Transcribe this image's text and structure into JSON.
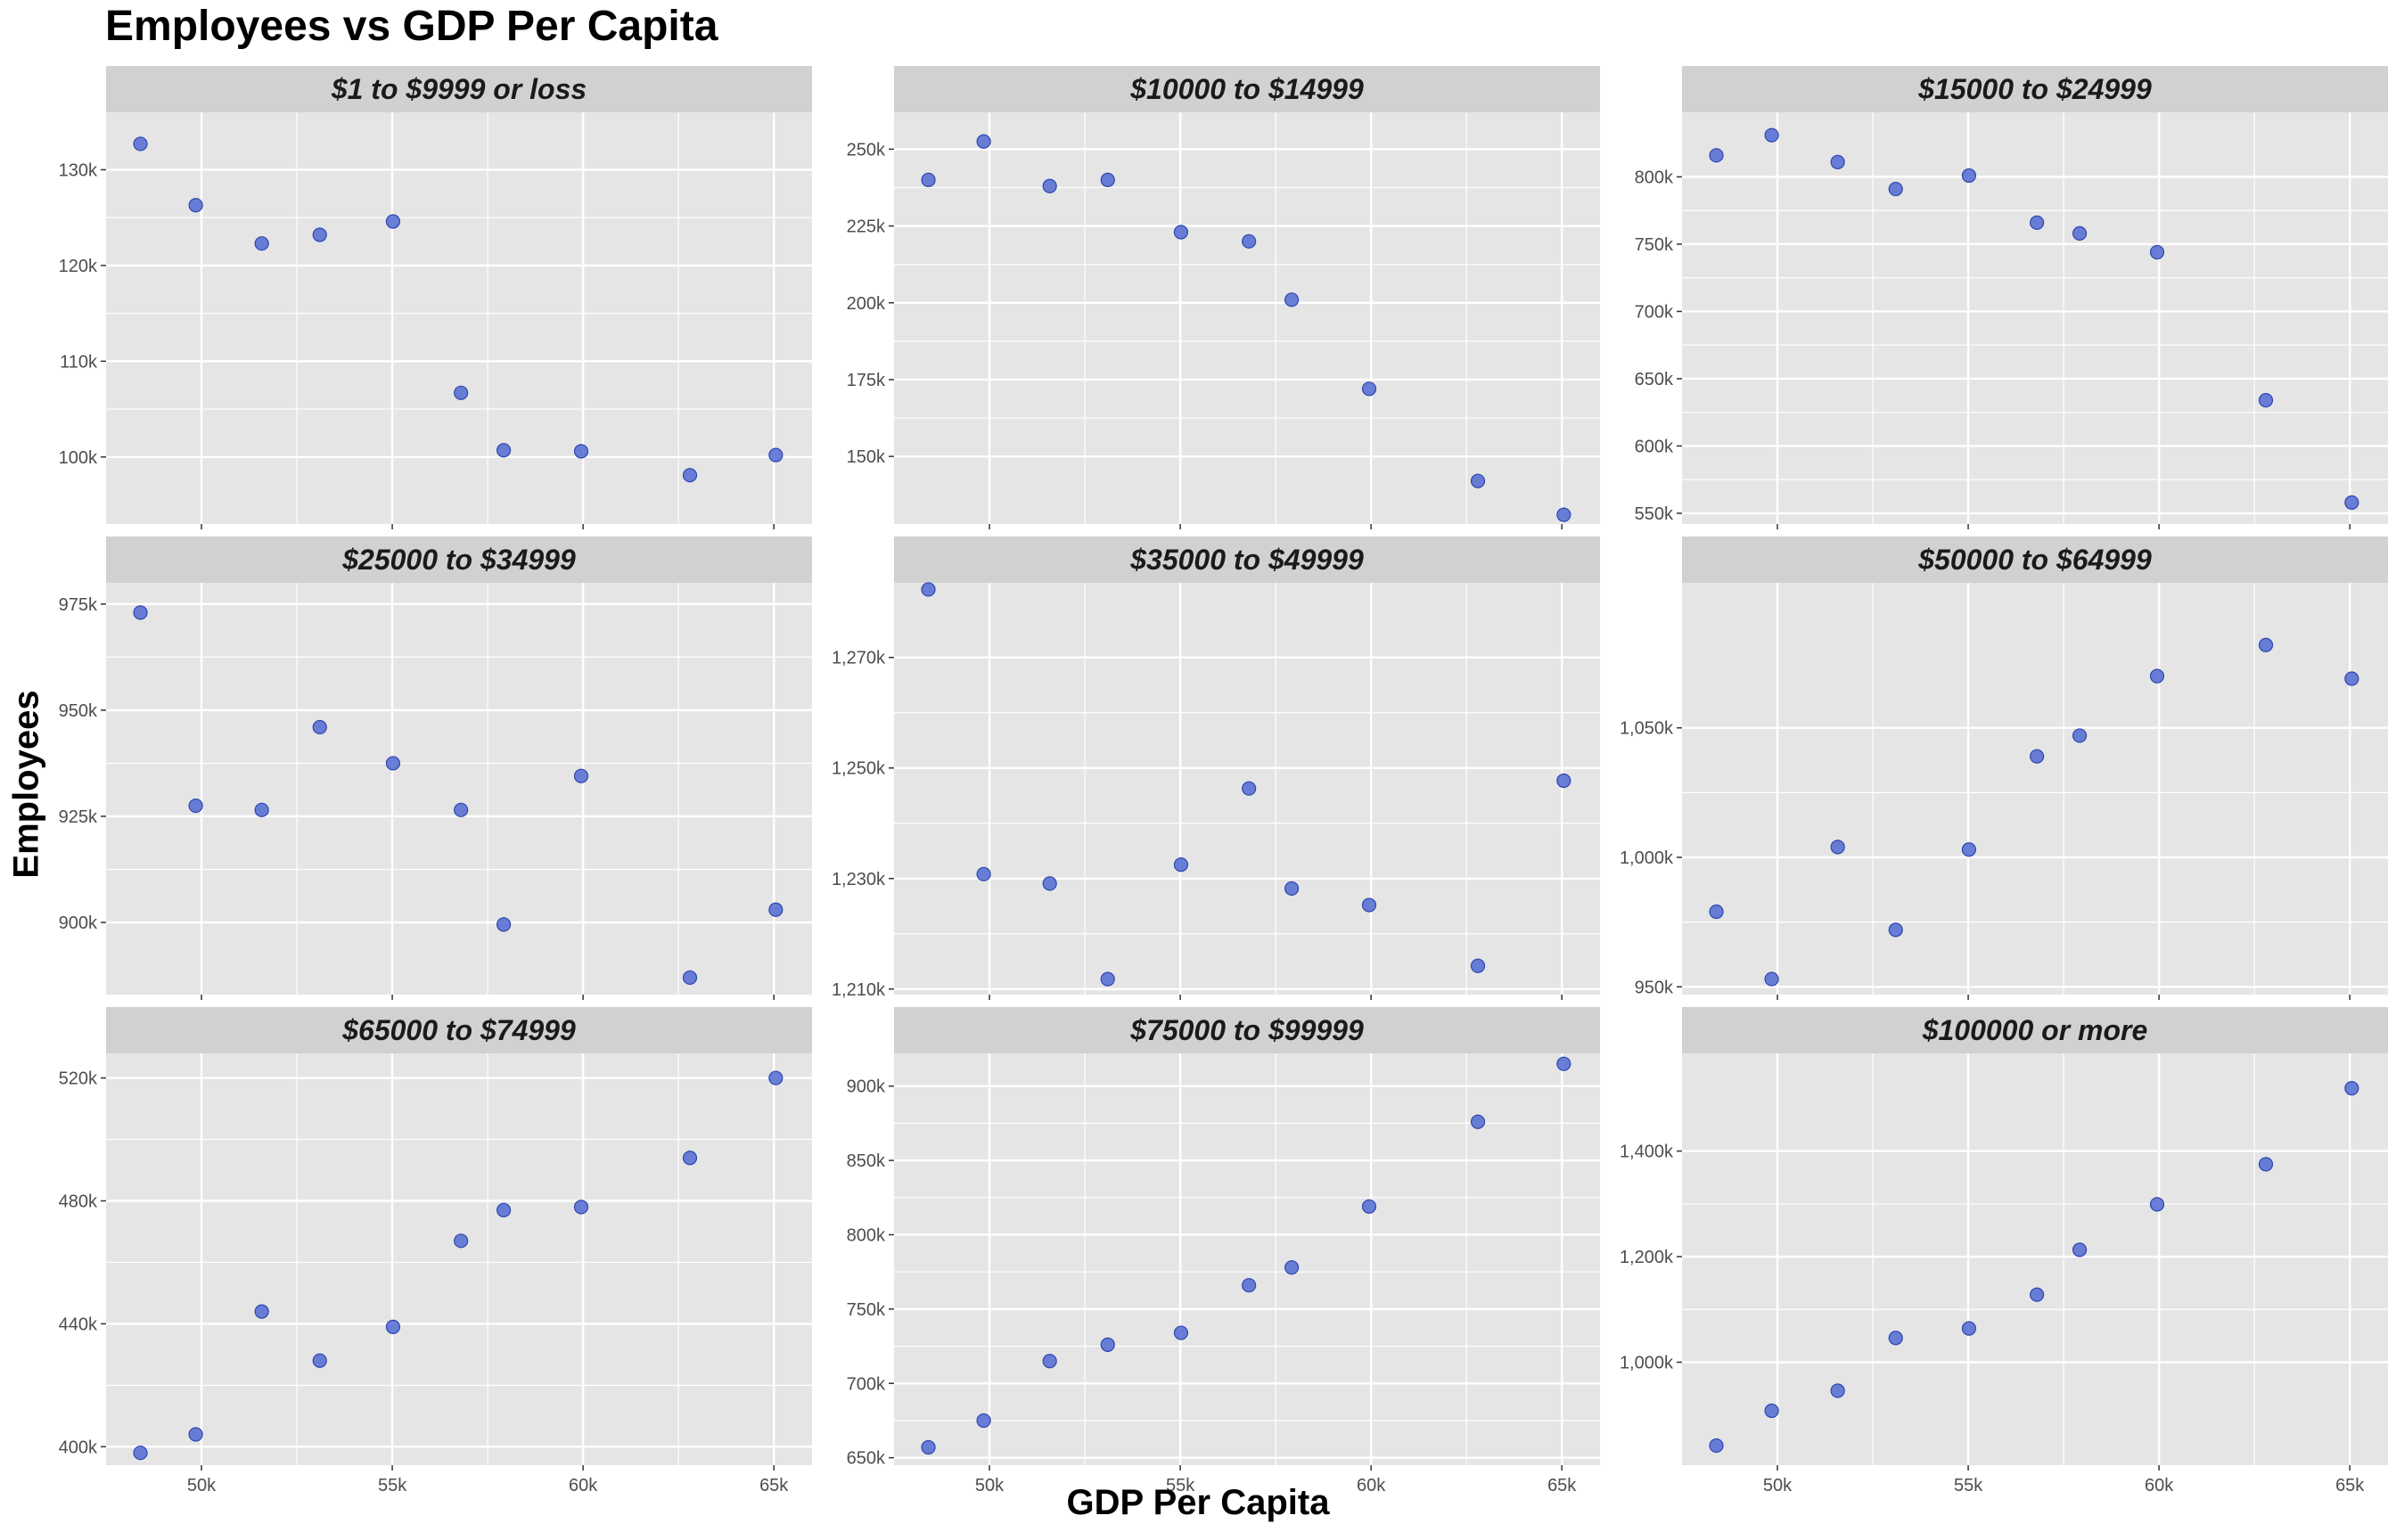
{
  "title": "Employees vs GDP Per Capita",
  "xlabel": "GDP Per Capita",
  "ylabel": "Employees",
  "colors": {
    "panel_bg": "#E5E5E5",
    "strip_bg": "#D1D1D1",
    "grid": "#FFFFFF",
    "point_fill": "#4A64D0",
    "point_stroke": "#2E46B0"
  },
  "chart_data": {
    "type": "scatter",
    "layout": "faceted 3x3 grid, free y scales, shared x axis",
    "grid": true,
    "legend": "none",
    "xlabel": "GDP Per Capita",
    "ylabel": "Employees",
    "xlim": [
      47500,
      66000
    ],
    "x_ticks": [
      50000,
      55000,
      60000,
      65000
    ],
    "x_tick_labels": [
      "50k",
      "55k",
      "60k",
      "65k"
    ],
    "x": [
      48400,
      49850,
      51580,
      53100,
      55020,
      56800,
      57920,
      59950,
      62800,
      65050
    ],
    "facets": [
      {
        "label": "$1 to $9999 or loss",
        "ylim": [
          93000,
          136000
        ],
        "y_ticks": [
          100000,
          110000,
          120000,
          130000
        ],
        "y_tick_labels": [
          "100k",
          "110k",
          "120k",
          "130k"
        ],
        "values": [
          132700,
          126300,
          122300,
          123200,
          124600,
          106700,
          100700,
          100600,
          98100,
          100200
        ]
      },
      {
        "label": "$10000 to $14999",
        "ylim": [
          128000,
          262000
        ],
        "y_ticks": [
          150000,
          175000,
          200000,
          225000,
          250000
        ],
        "y_tick_labels": [
          "150k",
          "175k",
          "200k",
          "225k",
          "250k"
        ],
        "values": [
          240000,
          252500,
          238000,
          240000,
          223000,
          220000,
          201000,
          172000,
          142000,
          131000
        ]
      },
      {
        "label": "$15000 to $24999",
        "ylim": [
          542000,
          848000
        ],
        "y_ticks": [
          550000,
          600000,
          650000,
          700000,
          750000,
          800000
        ],
        "y_tick_labels": [
          "550k",
          "600k",
          "650k",
          "700k",
          "750k",
          "800k"
        ],
        "values": [
          816000,
          831000,
          811000,
          791000,
          801000,
          766000,
          758000,
          744000,
          634000,
          558000
        ]
      },
      {
        "label": "$25000 to $34999",
        "ylim": [
          883000,
          980000
        ],
        "y_ticks": [
          900000,
          925000,
          950000,
          975000
        ],
        "y_tick_labels": [
          "900k",
          "925k",
          "950k",
          "975k"
        ],
        "values": [
          973000,
          927500,
          926500,
          946000,
          937500,
          926500,
          899500,
          934500,
          887000,
          903000
        ]
      },
      {
        "label": "$35000 to $49999",
        "ylim": [
          1209000,
          1283500
        ],
        "y_ticks": [
          1210000,
          1230000,
          1250000,
          1270000
        ],
        "y_tick_labels": [
          "1,210k",
          "1,230k",
          "1,250k",
          "1,270k"
        ],
        "values": [
          1282300,
          1230800,
          1229100,
          1211800,
          1232500,
          1246300,
          1228200,
          1225200,
          1214200,
          1247700
        ]
      },
      {
        "label": "$50000 to $64999",
        "ylim": [
          947000,
          1106000
        ],
        "y_ticks": [
          950000,
          1000000,
          1050000
        ],
        "y_tick_labels": [
          "950k",
          "1,000k",
          "1,050k"
        ],
        "values": [
          979000,
          953000,
          1004000,
          972000,
          1003000,
          1039000,
          1047000,
          1070000,
          1082000,
          1069000
        ]
      },
      {
        "label": "$65000 to $74999",
        "ylim": [
          394000,
          528000
        ],
        "y_ticks": [
          400000,
          440000,
          480000,
          520000
        ],
        "y_tick_labels": [
          "400k",
          "440k",
          "480k",
          "520k"
        ],
        "values": [
          398000,
          404000,
          444000,
          428000,
          439000,
          467000,
          477000,
          478000,
          494000,
          520000
        ]
      },
      {
        "label": "$75000 to $99999",
        "ylim": [
          645000,
          922000
        ],
        "y_ticks": [
          650000,
          700000,
          750000,
          800000,
          850000,
          900000
        ],
        "y_tick_labels": [
          "650k",
          "700k",
          "750k",
          "800k",
          "850k",
          "900k"
        ],
        "values": [
          657000,
          675000,
          715000,
          726000,
          734000,
          766000,
          778000,
          819000,
          876000,
          915000
        ]
      },
      {
        "label": "$100000 or more",
        "ylim": [
          805000,
          1585000
        ],
        "y_ticks": [
          1000000,
          1200000,
          1400000
        ],
        "y_tick_labels": [
          "1,000k",
          "1,200k",
          "1,400k"
        ],
        "values": [
          842000,
          908000,
          946000,
          1046000,
          1064000,
          1128000,
          1213000,
          1299000,
          1375000,
          1519000
        ]
      }
    ]
  }
}
